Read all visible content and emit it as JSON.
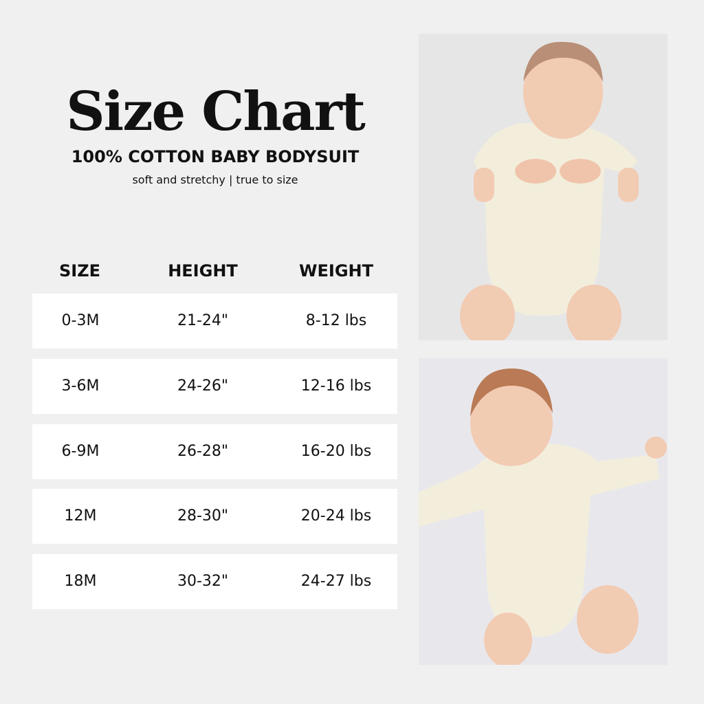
{
  "header": {
    "title": "Size Chart",
    "subtitle": "100% COTTON BABY BODYSUIT",
    "tagline": "soft and stretchy | true to size"
  },
  "table": {
    "columns": [
      "SIZE",
      "HEIGHT",
      "WEIGHT"
    ],
    "rows": [
      [
        "0-3M",
        "21-24\"",
        "8-12 lbs"
      ],
      [
        "3-6M",
        "24-26\"",
        "12-16 lbs"
      ],
      [
        "6-9M",
        "26-28\"",
        "16-20 lbs"
      ],
      [
        "12M",
        "28-30\"",
        "20-24 lbs"
      ],
      [
        "18M",
        "30-32\"",
        "24-27 lbs"
      ]
    ]
  },
  "colors": {
    "background": "#f0f0f0",
    "row": "#ffffff",
    "text": "#111111",
    "bodysuit": "#f3eedc"
  },
  "photos": [
    {
      "subject": "baby in short-sleeve bodysuit"
    },
    {
      "subject": "baby in long-sleeve bodysuit"
    }
  ]
}
